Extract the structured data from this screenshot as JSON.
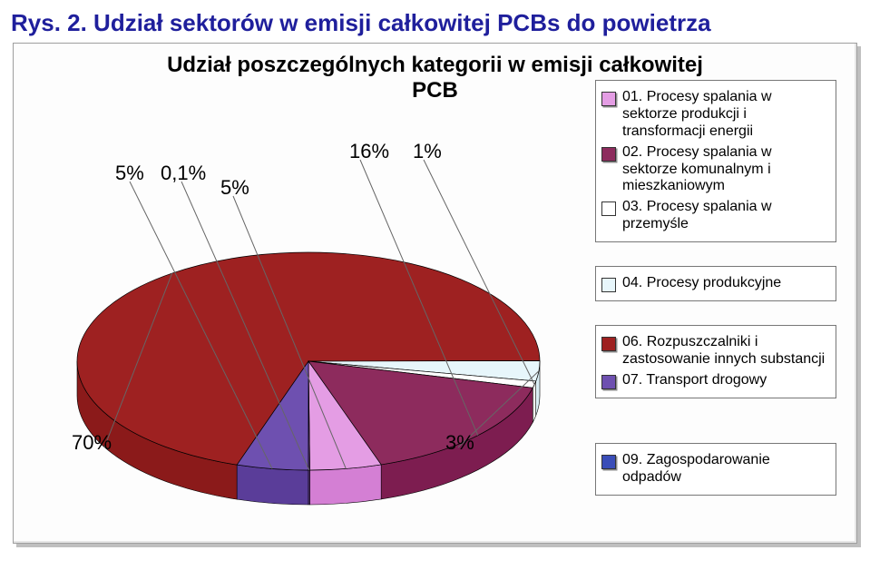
{
  "title": "Rys. 2. Udział sektorów w emisji całkowitej PCBs do powietrza",
  "subtitle_line1": "Udział poszczególnych kategorii w emisji całkowitej",
  "subtitle_line2": "PCB",
  "pie": {
    "type": "pie",
    "slices": [
      {
        "key": "s70",
        "value": 70,
        "label": "70%",
        "color": "#8b1a1a",
        "top_color": "#9e2121"
      },
      {
        "key": "s3",
        "value": 3,
        "label": "3%",
        "color": "#d9eef4",
        "top_color": "#e7f6fb"
      },
      {
        "key": "s1",
        "value": 1,
        "label": "1%",
        "color": "#f5f5f0",
        "top_color": "#ffffff"
      },
      {
        "key": "s16",
        "value": 16,
        "label": "16%",
        "color": "#7d1d50",
        "top_color": "#8d2b5d"
      },
      {
        "key": "s5a",
        "value": 5,
        "label": "5%",
        "color": "#d47fd4",
        "top_color": "#e49de4"
      },
      {
        "key": "s0_1",
        "value": 0.1,
        "label": "0,1%",
        "color": "#653a8c",
        "top_color": "#653a8c"
      },
      {
        "key": "s5b",
        "value": 5,
        "label": "5%",
        "color": "#5a3d99",
        "top_color": "#6e50b0"
      }
    ],
    "leader_color": "#666666",
    "background": "#fdfdfd",
    "depth": 38,
    "title_fontsize": 24
  },
  "pielabels": {
    "l5b": "5%",
    "l0_1": "0,1%",
    "l5a": "5%",
    "l16": "16%",
    "l1": "1%",
    "l70": "70%",
    "l3": "3%"
  },
  "legend": {
    "box1": [
      {
        "swatch": "#e49de4",
        "shadow": true,
        "text": "01. Procesy spalania w sektorze produkcji i transformacji energii"
      },
      {
        "swatch": "#8d2b5d",
        "shadow": true,
        "text": "02. Procesy spalania w sektorze komunalnym i mieszkaniowym"
      },
      {
        "swatch": "#ffffff",
        "shadow": false,
        "text": "03. Procesy spalania w przemyśle"
      }
    ],
    "box2": [
      {
        "swatch": "#e7f6fb",
        "shadow": false,
        "text": "04. Procesy produkcyjne"
      }
    ],
    "box3": [
      {
        "swatch": "#9e2121",
        "shadow": true,
        "text": "06. Rozpuszczalniki i zastosowanie innych substancji"
      },
      {
        "swatch": "#6e50b0",
        "shadow": true,
        "text": "07. Transport drogowy"
      }
    ],
    "box4": [
      {
        "swatch": "#3a4db8",
        "shadow": true,
        "text": "09. Zagospodarowanie odpadów"
      }
    ]
  }
}
